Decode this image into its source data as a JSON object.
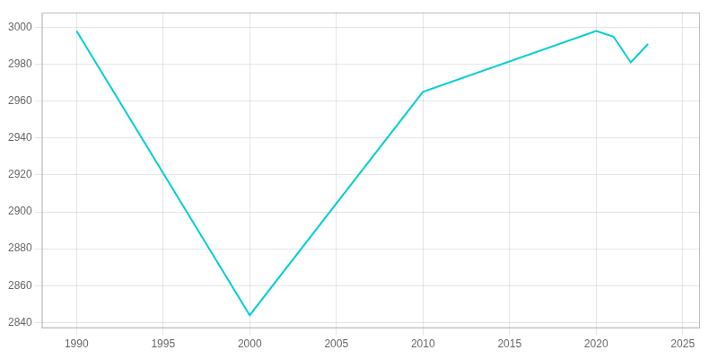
{
  "chart_data": {
    "type": "line",
    "x": [
      1990,
      2000,
      2010,
      2020,
      2021,
      2022,
      2023
    ],
    "values": [
      2998,
      2844,
      2965,
      2998,
      2995,
      2981,
      2991
    ],
    "color": "#00CED1",
    "xlim": [
      1988,
      2026
    ],
    "xticks": [
      1990,
      1995,
      2000,
      2005,
      2010,
      2015,
      2020,
      2025
    ],
    "ylim": [
      2837,
      3008
    ],
    "yticks": [
      2840,
      2860,
      2880,
      2900,
      2920,
      2940,
      2960,
      2980,
      3000
    ],
    "grid": true
  }
}
